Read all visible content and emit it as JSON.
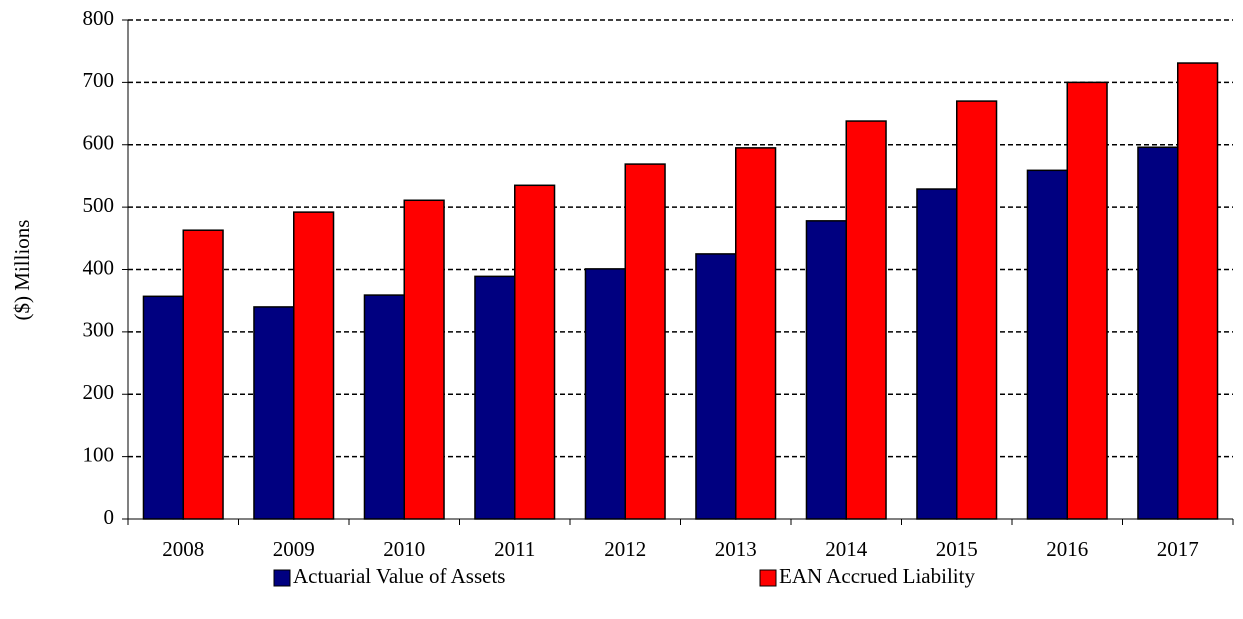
{
  "chart_data": {
    "type": "bar",
    "y_label": "($) Millions",
    "categories": [
      "2008",
      "2009",
      "2010",
      "2011",
      "2012",
      "2013",
      "2014",
      "2015",
      "2016",
      "2017"
    ],
    "series": [
      {
        "name": "Actuarial Value of Assets",
        "color": "#000080",
        "values": [
          357,
          340,
          359,
          389,
          401,
          425,
          478,
          529,
          559,
          596
        ]
      },
      {
        "name": "EAN Accrued Liability",
        "color": "#ff0000",
        "values": [
          463,
          492,
          511,
          535,
          569,
          595,
          638,
          670,
          700,
          731
        ]
      }
    ],
    "ylim": [
      0,
      800
    ],
    "yticks": [
      0,
      100,
      200,
      300,
      400,
      500,
      600,
      700,
      800
    ],
    "grid": true,
    "legend": "bottom"
  }
}
